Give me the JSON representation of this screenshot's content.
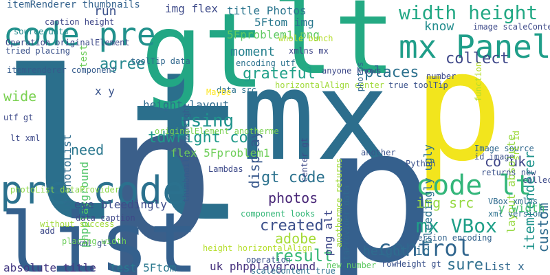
{
  "word_cloud": {
    "words": [
      {
        "text": "lt",
        "color": "#2b6f8c"
      },
      {
        "text": "p",
        "color": "#3b5f8a"
      },
      {
        "text": "mx",
        "color": "#2c6e8d"
      },
      {
        "text": "p",
        "color": "#f2e51d"
      },
      {
        "text": "gt",
        "color": "#22a784"
      },
      {
        "text": "lt",
        "color": "#24aa83"
      },
      {
        "text": "p",
        "color": "#35608d"
      },
      {
        "text": "list",
        "color": "#34608d"
      },
      {
        "text": "pre code",
        "color": "#2b718e"
      },
      {
        "text": "code pre",
        "color": "#21918c"
      },
      {
        "text": "mx Panel",
        "color": "#1f9e89"
      },
      {
        "text": "width height",
        "color": "#22a884"
      },
      {
        "text": "code lt",
        "color": "#33b67a"
      },
      {
        "text": "control",
        "color": "#31668e"
      },
      {
        "text": "mx VBox",
        "color": "#1f9f88"
      },
      {
        "text": "itemRenderer thumbnails",
        "color": "#33628d"
      },
      {
        "text": "img flex",
        "color": "#3e4a89"
      },
      {
        "text": "title Photos",
        "color": "#2b758e"
      },
      {
        "text": "5Ftom img",
        "color": "#2a788e"
      },
      {
        "text": "5Fproblem1 png",
        "color": "#5ec962"
      },
      {
        "text": "run",
        "color": "#3b528b"
      },
      {
        "text": "test",
        "color": "#6ccd5a"
      },
      {
        "text": "agree",
        "color": "#24878e"
      },
      {
        "text": "know",
        "color": "#228c8d"
      },
      {
        "text": "moment",
        "color": "#26818e"
      },
      {
        "text": "grateful",
        "color": "#1fa088"
      },
      {
        "text": "collect",
        "color": "#3f4889"
      },
      {
        "text": "places",
        "color": "#2d718e"
      },
      {
        "text": "id photoList",
        "color": "#2e6d8e"
      },
      {
        "text": "phpplayground",
        "color": "#52c569"
      },
      {
        "text": "x y",
        "color": "#3a548c"
      },
      {
        "text": "wide",
        "color": "#7ad151"
      },
      {
        "text": "height layout",
        "color": "#2f6b8e"
      },
      {
        "text": "using",
        "color": "#20938c"
      },
      {
        "text": "display",
        "color": "#38588c"
      },
      {
        "text": "tdwright co",
        "color": "#1f998a"
      },
      {
        "text": "flex 5Fproblem1",
        "color": "#6ece58"
      },
      {
        "text": "need",
        "color": "#2a778e"
      },
      {
        "text": "gt code",
        "color": "#2c728e"
      },
      {
        "text": "photos",
        "color": "#482677"
      },
      {
        "text": "eye bleedingly",
        "color": "#3e4c8a"
      },
      {
        "text": "created",
        "color": "#3c508b"
      },
      {
        "text": "adobe",
        "color": "#a5db36"
      },
      {
        "text": "result",
        "color": "#38b977"
      },
      {
        "text": "absolute title",
        "color": "#443983"
      },
      {
        "text": "test 5Ftom",
        "color": "#2a788e"
      },
      {
        "text": "uk phpplayground",
        "color": "#46327e"
      },
      {
        "text": "sure",
        "color": "#2e6f8e"
      },
      {
        "text": "List x",
        "color": "#31688e"
      },
      {
        "text": "height id",
        "color": "#2f6c8e"
      },
      {
        "text": "img src",
        "color": "#95d840"
      },
      {
        "text": "co uk",
        "color": "#404688"
      },
      {
        "text": "custom",
        "color": "#2f6b8e"
      },
      {
        "text": "itemrenderer",
        "color": "#1f948c"
      },
      {
        "text": "layout absolute",
        "color": "#95d840"
      },
      {
        "text": "y width",
        "color": "#44bf70"
      },
      {
        "text": "bleedingly ugly",
        "color": "#2c728e"
      },
      {
        "text": "png alt",
        "color": "#3e4989"
      },
      {
        "text": "component looks",
        "color": "#35b779"
      },
      {
        "text": "thumbnails rowHeight",
        "color": "#365d8d"
      },
      {
        "text": "dataProvider data",
        "color": "#31688e"
      },
      {
        "text": "rowHeight gt",
        "color": "#3b528b"
      },
      {
        "text": "scaleContent true",
        "color": "#2d708e"
      },
      {
        "text": "source data",
        "color": "#238a8d"
      },
      {
        "text": "itemrenderer component",
        "color": "#365c8d"
      },
      {
        "text": "toolTip data",
        "color": "#31688e"
      },
      {
        "text": "data src",
        "color": "#2c728e"
      },
      {
        "text": "true toolTip",
        "color": "#3b528b"
      },
      {
        "text": "lt xml",
        "color": "#3e4a89"
      },
      {
        "text": "utf gt",
        "color": "#3e4a89"
      },
      {
        "text": "photoList dataProvider",
        "color": "#8bd646"
      },
      {
        "text": "data caption",
        "color": "#3f4788"
      },
      {
        "text": "mxml gt",
        "color": "#3b528b"
      },
      {
        "text": "height horizontalAlign",
        "color": "#b5de2b"
      },
      {
        "text": "Image source",
        "color": "#31688e"
      },
      {
        "text": "id image",
        "color": "#3b528b"
      },
      {
        "text": "VBox xmlns",
        "color": "#2f6b8e"
      },
      {
        "text": "xml version",
        "color": "#2d708e"
      },
      {
        "text": "version encoding",
        "color": "#33638d"
      },
      {
        "text": "image scaleContent",
        "color": "#3e4a89"
      },
      {
        "text": "encoding utf",
        "color": "#2c728e"
      },
      {
        "text": "xmlns mx",
        "color": "#3f4788"
      },
      {
        "text": "caption height",
        "color": "#3f4788"
      },
      {
        "text": "anyone knows",
        "color": "#3e4a89"
      },
      {
        "text": "horizontalAlign center",
        "color": "#a0da39"
      },
      {
        "text": "photos",
        "color": "#31688e"
      },
      {
        "text": "src id",
        "color": "#9fda3a"
      },
      {
        "text": "center gt",
        "color": "#3e4a89"
      },
      {
        "text": "without success",
        "color": "#a0da39"
      },
      {
        "text": "placing width",
        "color": "#6ccd5a"
      },
      {
        "text": "whole bunch",
        "color": "#b5de2b"
      },
      {
        "text": "Operation originalElement",
        "color": "#3e4a89"
      },
      {
        "text": "tried placing",
        "color": "#3b528b"
      },
      {
        "text": "originalElement anotherme",
        "color": "#7ad151"
      },
      {
        "text": "Lambdas",
        "color": "#3e4a89"
      },
      {
        "text": "Python",
        "color": "#3b528b"
      },
      {
        "text": "returns new",
        "color": "#3b528b"
      },
      {
        "text": "another",
        "color": "#3b528b"
      },
      {
        "text": "collection",
        "color": "#3e4a89"
      },
      {
        "text": "new number",
        "color": "#5ec962"
      },
      {
        "text": "operation",
        "color": "#3b528b"
      },
      {
        "text": "number",
        "color": "#3e4a89"
      },
      {
        "text": "function",
        "color": "#b5de2b"
      },
      {
        "text": "Maybe",
        "color": "#fde725"
      },
      {
        "text": "add",
        "color": "#3e4a89"
      },
      {
        "text": "anothermce returns",
        "color": "#a0da39"
      }
    ]
  }
}
